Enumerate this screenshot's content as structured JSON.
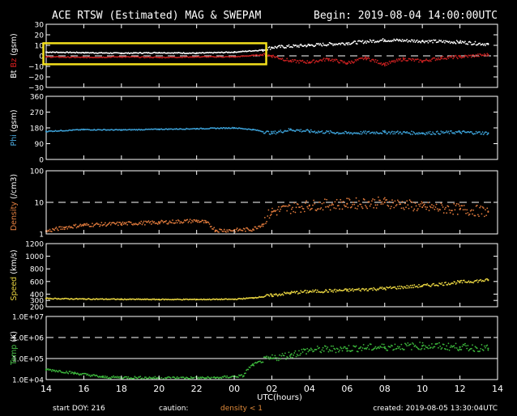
{
  "chart_data": {
    "type": "scatter",
    "title": "ACE RTSW (Estimated) MAG & SWEPAM",
    "begin": "Begin: 2019-08-04 14:00:00UTC",
    "xlabel": "UTC(hours)",
    "x_ticks": [
      "14",
      "16",
      "18",
      "20",
      "22",
      "00",
      "02",
      "04",
      "06",
      "08",
      "10",
      "12",
      "14"
    ],
    "footer": {
      "start_doy": "start DOY: 216",
      "caution": "caution:",
      "density_note": "density < 1",
      "created": "created: 2019-08-05 13:30:04UTC"
    },
    "panels": [
      {
        "id": "mag",
        "ylabel_parts": [
          {
            "text": "Bt",
            "color": "#ffffff"
          },
          {
            "text": " Bz",
            "color": "#e02020"
          },
          {
            "text": " (gsm)",
            "color": "#ffffff"
          }
        ],
        "scale": "linear",
        "ylim": [
          -30,
          30
        ],
        "ticks": [
          {
            "v": 30,
            "label": "30"
          },
          {
            "v": 20,
            "label": "20"
          },
          {
            "v": 10,
            "label": "10"
          },
          {
            "v": 0,
            "label": "0"
          },
          {
            "v": -10,
            "label": "−10"
          },
          {
            "v": -20,
            "label": "−20"
          },
          {
            "v": -30,
            "label": "−30"
          }
        ],
        "reference_lines": [
          {
            "v": 0,
            "style": "dashed"
          }
        ],
        "highlight_box": {
          "x0": -0.15,
          "x1": 11.7,
          "y0": -8,
          "y1": 12,
          "color": "#f4e01c"
        },
        "series": [
          {
            "name": "Bt",
            "color": "#ffffff",
            "points": [
              [
                0,
                3.5
              ],
              [
                2,
                3
              ],
              [
                4,
                2.5
              ],
              [
                6,
                3
              ],
              [
                8,
                2.5
              ],
              [
                10,
                3.5
              ],
              [
                11.5,
                5.5
              ],
              [
                12,
                8
              ],
              [
                14,
                10
              ],
              [
                16,
                12
              ],
              [
                18,
                15
              ],
              [
                20,
                14
              ],
              [
                22,
                13
              ],
              [
                23.5,
                11
              ]
            ]
          },
          {
            "name": "Bz",
            "color": "#c82020",
            "points": [
              [
                0,
                -1
              ],
              [
                2,
                -1.5
              ],
              [
                4,
                -1
              ],
              [
                6,
                -1.5
              ],
              [
                8,
                -1
              ],
              [
                10,
                -1
              ],
              [
                11.5,
                1
              ],
              [
                12,
                0
              ],
              [
                13,
                -5
              ],
              [
                14,
                -6
              ],
              [
                15,
                -3
              ],
              [
                16,
                -7
              ],
              [
                17,
                -2
              ],
              [
                18,
                -8
              ],
              [
                19,
                -3
              ],
              [
                20,
                -5
              ],
              [
                21,
                -2
              ],
              [
                22,
                -1
              ],
              [
                23.5,
                1
              ]
            ]
          }
        ]
      },
      {
        "id": "phi",
        "ylabel_parts": [
          {
            "text": "Phi",
            "color": "#4aa8dc"
          },
          {
            "text": " (gsm)",
            "color": "#ffffff"
          }
        ],
        "scale": "linear",
        "ylim": [
          0,
          360
        ],
        "ticks": [
          {
            "v": 360,
            "label": "360"
          },
          {
            "v": 270,
            "label": "270"
          },
          {
            "v": 180,
            "label": "180"
          },
          {
            "v": 90,
            "label": "90"
          },
          {
            "v": 0,
            "label": "0"
          }
        ],
        "reference_lines": [],
        "series": [
          {
            "name": "Phi",
            "color": "#3ca0d6",
            "points": [
              [
                0,
                160
              ],
              [
                2,
                170
              ],
              [
                4,
                168
              ],
              [
                6,
                172
              ],
              [
                8,
                175
              ],
              [
                10,
                180
              ],
              [
                11,
                170
              ],
              [
                12,
                150
              ],
              [
                13,
                170
              ],
              [
                14,
                160
              ],
              [
                16,
                150
              ],
              [
                18,
                155
              ],
              [
                20,
                150
              ],
              [
                22,
                155
              ],
              [
                23.5,
                150
              ]
            ]
          }
        ]
      },
      {
        "id": "density",
        "ylabel_parts": [
          {
            "text": "Density",
            "color": "#e58040"
          },
          {
            "text": " (/cm3)",
            "color": "#ffffff"
          }
        ],
        "scale": "log",
        "ylim": [
          1,
          100
        ],
        "ticks": [
          {
            "v": 100,
            "label": "100"
          },
          {
            "v": 10,
            "label": "10"
          },
          {
            "v": 1,
            "label": "1"
          }
        ],
        "reference_lines": [
          {
            "v": 10,
            "style": "dashed"
          }
        ],
        "series": [
          {
            "name": "Density",
            "color": "#e07a3c",
            "points": [
              [
                0,
                1.2
              ],
              [
                1,
                1.6
              ],
              [
                2,
                1.9
              ],
              [
                4,
                2.1
              ],
              [
                6,
                2.3
              ],
              [
                8,
                2.6
              ],
              [
                8.5,
                2.3
              ],
              [
                9,
                1.3
              ],
              [
                10,
                1.3
              ],
              [
                11,
                1.4
              ],
              [
                11.5,
                2
              ],
              [
                12,
                5
              ],
              [
                14,
                8
              ],
              [
                16,
                9
              ],
              [
                18,
                10
              ],
              [
                20,
                7
              ],
              [
                22,
                6
              ],
              [
                23.5,
                5
              ]
            ]
          }
        ]
      },
      {
        "id": "speed",
        "ylabel_parts": [
          {
            "text": "Speed",
            "color": "#e8d440"
          },
          {
            "text": " (km/s)",
            "color": "#ffffff"
          }
        ],
        "scale": "linear",
        "ylim": [
          200,
          1200
        ],
        "ticks": [
          {
            "v": 1200,
            "label": "1200"
          },
          {
            "v": 1000,
            "label": "1000"
          },
          {
            "v": 800,
            "label": "800"
          },
          {
            "v": 600,
            "label": "600"
          },
          {
            "v": 400,
            "label": "400"
          },
          {
            "v": 300,
            "label": "300"
          },
          {
            "v": 200,
            "label": "200"
          }
        ],
        "reference_lines": [],
        "series": [
          {
            "name": "Speed",
            "color": "#e8d440",
            "points": [
              [
                0,
                330
              ],
              [
                2,
                322
              ],
              [
                4,
                318
              ],
              [
                6,
                315
              ],
              [
                8,
                315
              ],
              [
                10,
                318
              ],
              [
                11,
                340
              ],
              [
                12,
                380
              ],
              [
                13,
                420
              ],
              [
                14,
                440
              ],
              [
                16,
                460
              ],
              [
                18,
                490
              ],
              [
                20,
                530
              ],
              [
                22,
                590
              ],
              [
                23.5,
                620
              ]
            ]
          }
        ]
      },
      {
        "id": "temp",
        "ylabel_parts": [
          {
            "text": "Temp",
            "color": "#48c048"
          },
          {
            "text": " (K)",
            "color": "#ffffff"
          }
        ],
        "scale": "log",
        "ylim": [
          10000,
          10000000
        ],
        "ticks": [
          {
            "v": 10000000,
            "label": "1.0E+07"
          },
          {
            "v": 1000000,
            "label": "1.0E+06"
          },
          {
            "v": 100000,
            "label": "1.0E+05"
          },
          {
            "v": 10000,
            "label": "1.0E+04"
          }
        ],
        "reference_lines": [
          {
            "v": 1000000,
            "style": "dashed"
          },
          {
            "v": 100000,
            "style": "solid"
          }
        ],
        "series": [
          {
            "name": "Temp",
            "color": "#3cb83c",
            "points": [
              [
                0,
                30000
              ],
              [
                1.5,
                20000
              ],
              [
                3,
                13000
              ],
              [
                6,
                12000
              ],
              [
                9,
                12000
              ],
              [
                10.5,
                15000
              ],
              [
                11,
                50000
              ],
              [
                12,
                100000
              ],
              [
                13,
                150000
              ],
              [
                14,
                250000
              ],
              [
                16,
                300000
              ],
              [
                18,
                350000
              ],
              [
                20,
                400000
              ],
              [
                22,
                350000
              ],
              [
                23.5,
                300000
              ]
            ]
          }
        ]
      }
    ]
  }
}
